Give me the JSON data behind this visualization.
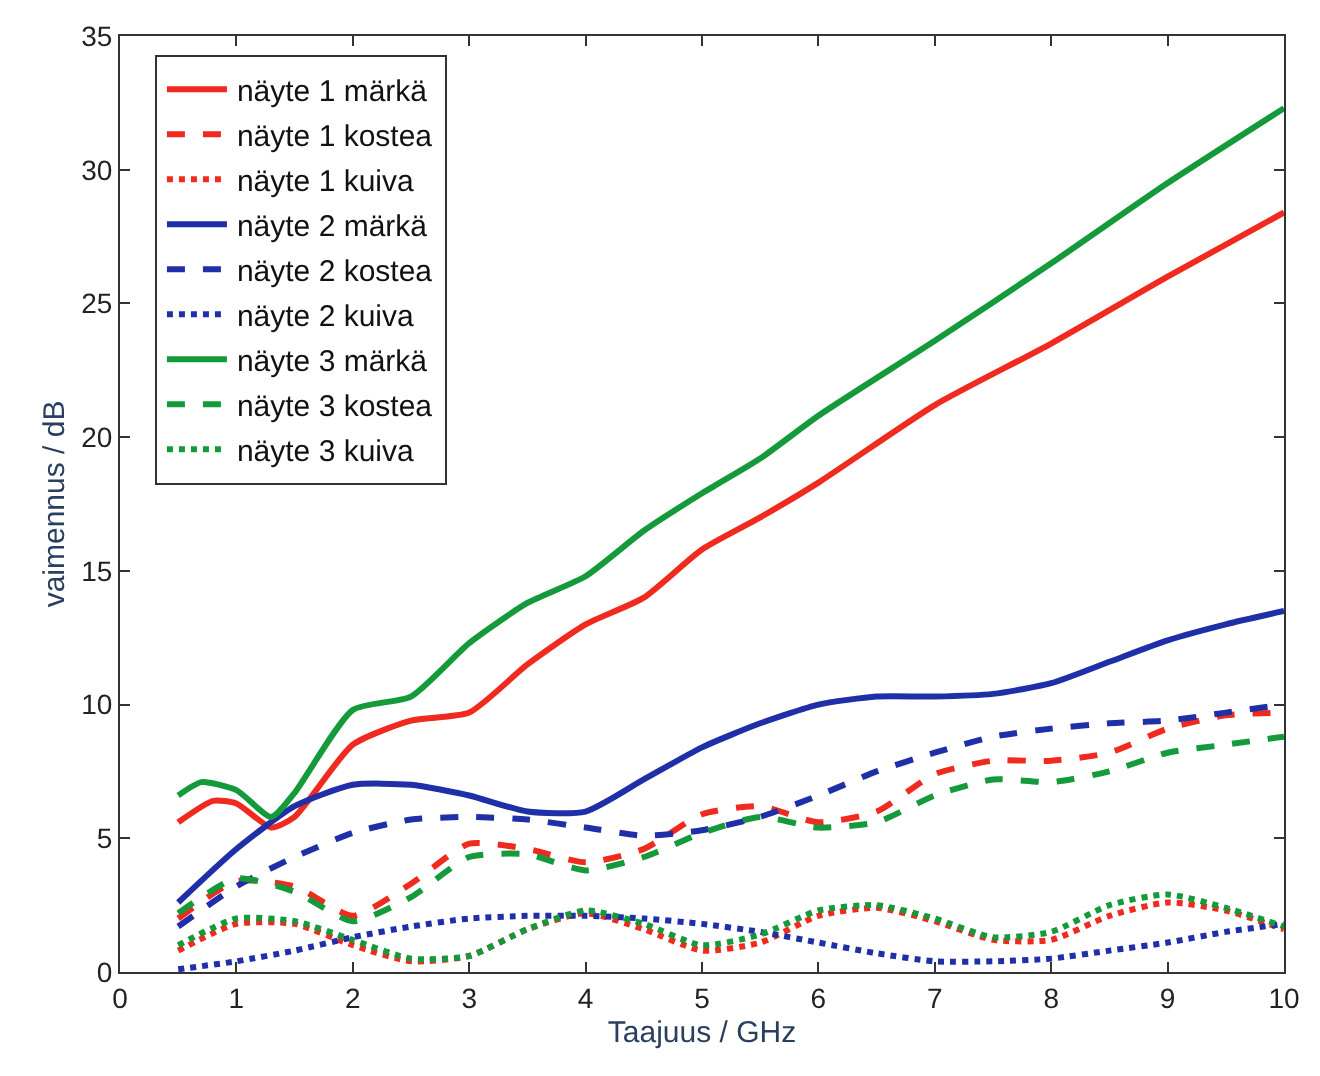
{
  "chart_data": {
    "type": "line",
    "xlabel": "Taajuus / GHz",
    "ylabel": "vaimennus / dB",
    "x": [
      0.5,
      1,
      1.5,
      2,
      2.5,
      3,
      3.5,
      4,
      4.5,
      5,
      5.5,
      6,
      6.5,
      7,
      7.5,
      8,
      8.5,
      9,
      9.5,
      10
    ],
    "xlim": [
      0,
      10
    ],
    "xticks": [
      0,
      1,
      2,
      3,
      4,
      5,
      6,
      7,
      8,
      9,
      10
    ],
    "ylim": [
      0,
      35
    ],
    "yticks": [
      0,
      5,
      10,
      15,
      20,
      25,
      30,
      35
    ],
    "grid": false,
    "legend": "top left",
    "marker": "none",
    "series": [
      {
        "name": "näyte 1 märkä",
        "color": "#f02a1e",
        "line_style": "solid",
        "x": [
          0.5,
          0.8,
          1,
          1.3,
          1.5,
          2,
          2.5,
          3,
          3.5,
          4,
          4.5,
          5,
          5.5,
          6,
          7,
          8,
          9,
          10
        ],
        "values": [
          5.6,
          6.4,
          6.3,
          5.4,
          5.8,
          8.5,
          9.4,
          9.7,
          11.5,
          13,
          14,
          15.8,
          17,
          18.3,
          21.2,
          23.5,
          26,
          28.4
        ]
      },
      {
        "name": "näyte 1 kostea",
        "color": "#f02a1e",
        "line_style": "dashed",
        "values": [
          2.0,
          3.4,
          3.2,
          2.1,
          3.3,
          4.8,
          4.6,
          4.1,
          4.6,
          5.9,
          6.2,
          5.6,
          6.0,
          7.4,
          7.9,
          7.9,
          8.2,
          9.1,
          9.6,
          9.7
        ]
      },
      {
        "name": "näyte 1 kuiva",
        "color": "#f02a1e",
        "line_style": "dotted",
        "values": [
          0.8,
          1.8,
          1.8,
          1.0,
          0.4,
          0.6,
          1.6,
          2.2,
          1.6,
          0.8,
          1.1,
          2.1,
          2.4,
          1.9,
          1.2,
          1.2,
          2.1,
          2.6,
          2.3,
          1.6
        ]
      },
      {
        "name": "näyte 2 märkä",
        "color": "#1f2fa8",
        "line_style": "solid",
        "values": [
          2.6,
          4.6,
          6.2,
          7.0,
          7.0,
          6.6,
          6.0,
          6.0,
          7.2,
          8.4,
          9.3,
          10.0,
          10.3,
          10.3,
          10.4,
          10.8,
          11.6,
          12.4,
          13.0,
          13.5
        ]
      },
      {
        "name": "näyte 2 kostea",
        "color": "#1f2fa8",
        "line_style": "dashed",
        "values": [
          1.7,
          3.2,
          4.3,
          5.2,
          5.7,
          5.8,
          5.7,
          5.4,
          5.1,
          5.3,
          5.8,
          6.6,
          7.5,
          8.2,
          8.8,
          9.1,
          9.3,
          9.4,
          9.7,
          10.0
        ]
      },
      {
        "name": "näyte 2 kuiva",
        "color": "#1f2fa8",
        "line_style": "dotted",
        "values": [
          0.1,
          0.4,
          0.8,
          1.3,
          1.7,
          2.0,
          2.1,
          2.1,
          2.0,
          1.8,
          1.5,
          1.1,
          0.7,
          0.4,
          0.4,
          0.5,
          0.8,
          1.1,
          1.5,
          1.8
        ]
      },
      {
        "name": "näyte 3 märkä",
        "color": "#149a3a",
        "line_style": "solid",
        "x": [
          0.5,
          0.7,
          1,
          1.3,
          1.5,
          2,
          2.5,
          3,
          3.5,
          4,
          4.5,
          5,
          5.5,
          6,
          7,
          8,
          9,
          10
        ],
        "values": [
          6.6,
          7.1,
          6.8,
          5.8,
          6.7,
          9.8,
          10.3,
          12.3,
          13.8,
          14.8,
          16.5,
          17.9,
          19.2,
          20.8,
          23.6,
          26.5,
          29.5,
          32.3
        ]
      },
      {
        "name": "näyte 3 kostea",
        "color": "#149a3a",
        "line_style": "dashed",
        "values": [
          2.2,
          3.5,
          3.0,
          1.9,
          2.8,
          4.3,
          4.4,
          3.8,
          4.3,
          5.2,
          5.8,
          5.4,
          5.6,
          6.6,
          7.2,
          7.1,
          7.5,
          8.2,
          8.5,
          8.8
        ]
      },
      {
        "name": "näyte 3 kuiva",
        "color": "#149a3a",
        "line_style": "dotted",
        "values": [
          1.0,
          2.0,
          1.9,
          1.2,
          0.5,
          0.6,
          1.6,
          2.3,
          1.8,
          1.0,
          1.4,
          2.3,
          2.5,
          2.0,
          1.3,
          1.5,
          2.5,
          2.9,
          2.4,
          1.7
        ]
      }
    ]
  }
}
